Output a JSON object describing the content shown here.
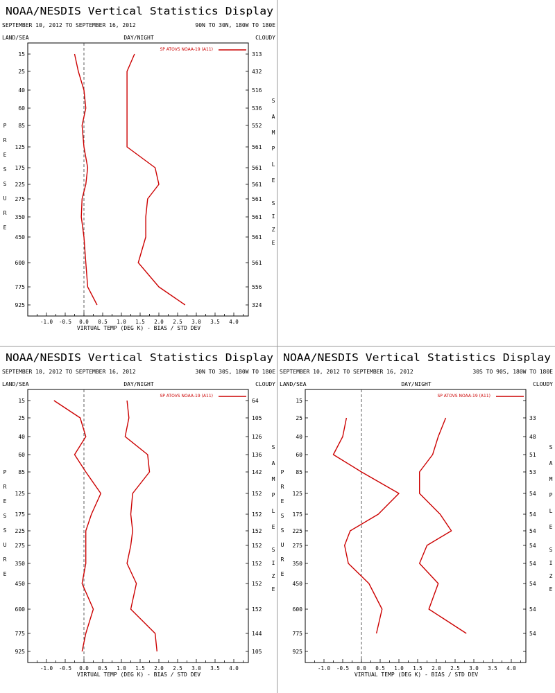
{
  "panels": [
    {
      "title": "NOAA/NESDIS Vertical Statistics Display",
      "date_range": "SEPTEMBER 10, 2012 TO SEPTEMBER 16, 2012",
      "region": "90N TO 30N, 180W TO 180E",
      "left_label": "LAND/SEA",
      "center_label": "DAY/NIGHT",
      "right_label": "CLOUDY",
      "xlabel": "VIRTUAL TEMP (DEG K) - BIAS / STD DEV",
      "ylabel": "PRESSURE",
      "y2label": "SAMPLE SIZE",
      "legend": "SP ATOVS NOAA-19 (A11)",
      "chart_data": {
        "type": "line",
        "xlim": [
          -1.5,
          4.5
        ],
        "xticks": [
          "-1.0",
          "-0.5",
          "0.0",
          "0.5",
          "1.0",
          "1.5",
          "2.0",
          "2.5",
          "3.0",
          "3.5",
          "4.0"
        ],
        "pressure_levels": [
          "15",
          "25",
          "40",
          "60",
          "85",
          "125",
          "175",
          "225",
          "275",
          "350",
          "450",
          "600",
          "775",
          "925"
        ],
        "sample_size": [
          "313",
          "432",
          "516",
          "536",
          "552",
          "561",
          "561",
          "561",
          "561",
          "561",
          "561",
          "561",
          "556",
          "324"
        ],
        "series": [
          {
            "name": "bias",
            "values": [
              -0.25,
              -0.15,
              0.0,
              0.05,
              -0.05,
              0.0,
              0.1,
              0.05,
              -0.05,
              -0.07,
              0.0,
              0.05,
              0.1,
              0.35
            ]
          },
          {
            "name": "std_dev",
            "values": [
              1.35,
              1.15,
              1.15,
              1.15,
              1.15,
              1.15,
              1.9,
              2.0,
              1.7,
              1.65,
              1.65,
              1.45,
              2.0,
              2.7
            ]
          }
        ],
        "color": "#cc0000"
      }
    },
    {
      "title": "NOAA/NESDIS Vertical Statistics Display",
      "date_range": "SEPTEMBER 10, 2012 TO SEPTEMBER 16, 2012",
      "region": "30N TO 30S, 180W TO 180E",
      "left_label": "LAND/SEA",
      "center_label": "DAY/NIGHT",
      "right_label": "CLOUDY",
      "xlabel": "VIRTUAL TEMP (DEG K) - BIAS / STD DEV",
      "ylabel": "PRESSURE",
      "y2label": "SAMPLE SIZE",
      "legend": "SP ATOVS NOAA-19 (A11)",
      "chart_data": {
        "type": "line",
        "xlim": [
          -1.5,
          4.5
        ],
        "xticks": [
          "-1.0",
          "-0.5",
          "0.0",
          "0.5",
          "1.0",
          "1.5",
          "2.0",
          "2.5",
          "3.0",
          "3.5",
          "4.0"
        ],
        "pressure_levels": [
          "15",
          "25",
          "40",
          "60",
          "85",
          "125",
          "175",
          "225",
          "275",
          "350",
          "450",
          "600",
          "775",
          "925"
        ],
        "sample_size": [
          "64",
          "105",
          "126",
          "136",
          "142",
          "152",
          "152",
          "152",
          "152",
          "152",
          "152",
          "152",
          "144",
          "105"
        ],
        "series": [
          {
            "name": "bias",
            "values": [
              -0.8,
              -0.1,
              0.05,
              -0.25,
              0.05,
              0.45,
              0.2,
              0.05,
              0.05,
              0.05,
              -0.05,
              0.25,
              0.05,
              -0.05
            ]
          },
          {
            "name": "std_dev",
            "values": [
              1.15,
              1.2,
              1.1,
              1.7,
              1.75,
              1.3,
              1.25,
              1.3,
              1.25,
              1.15,
              1.4,
              1.25,
              1.9,
              1.95
            ]
          }
        ],
        "color": "#cc0000"
      }
    },
    {
      "title": "NOAA/NESDIS Vertical Statistics Display",
      "date_range": "SEPTEMBER 10, 2012 TO SEPTEMBER 16, 2012",
      "region": "30S TO 90S, 180W TO 180E",
      "left_label": "LAND/SEA",
      "center_label": "DAY/NIGHT",
      "right_label": "CLOUDY",
      "xlabel": "VIRTUAL TEMP (DEG K) - BIAS / STD DEV",
      "ylabel": "PRESSURE",
      "y2label": "SAMPLE SIZE",
      "legend": "SP ATOVS NOAA-19 (A11)",
      "chart_data": {
        "type": "line",
        "xlim": [
          -1.5,
          4.5
        ],
        "xticks": [
          "-1.0",
          "-0.5",
          "0.0",
          "0.5",
          "1.0",
          "1.5",
          "2.0",
          "2.5",
          "3.0",
          "3.5",
          "4.0"
        ],
        "pressure_levels": [
          "15",
          "25",
          "40",
          "60",
          "85",
          "125",
          "175",
          "225",
          "275",
          "350",
          "450",
          "600",
          "775",
          "925"
        ],
        "sample_size": [
          "",
          "33",
          "48",
          "51",
          "53",
          "54",
          "54",
          "54",
          "54",
          "54",
          "54",
          "54",
          "54",
          ""
        ],
        "series": [
          {
            "name": "bias",
            "values": [
              null,
              -0.4,
              -0.5,
              -0.75,
              0.0,
              1.0,
              0.45,
              -0.3,
              -0.45,
              -0.35,
              0.2,
              0.55,
              0.4,
              null
            ]
          },
          {
            "name": "std_dev",
            "values": [
              null,
              2.25,
              2.05,
              1.9,
              1.55,
              1.55,
              2.1,
              2.4,
              1.75,
              1.55,
              2.05,
              1.8,
              2.8,
              null
            ]
          }
        ],
        "color": "#cc0000"
      }
    }
  ]
}
